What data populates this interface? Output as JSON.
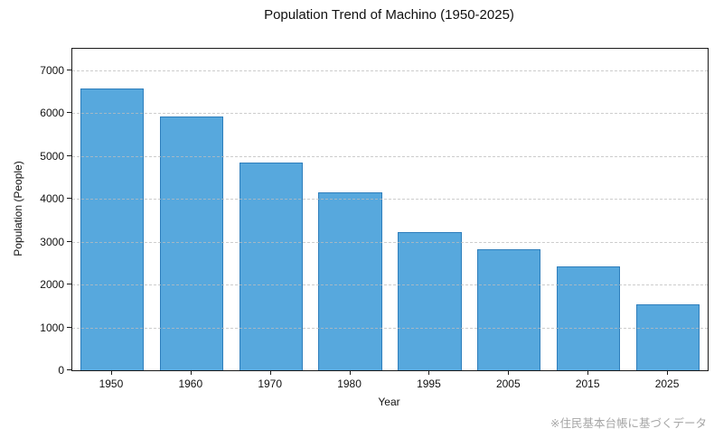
{
  "chart_data": {
    "type": "bar",
    "title": "Population Trend of Machino (1950-2025)",
    "xlabel": "Year",
    "ylabel": "Population (People)",
    "categories": [
      "1950",
      "1960",
      "1970",
      "1980",
      "1995",
      "2005",
      "2015",
      "2025"
    ],
    "values": [
      6570,
      5910,
      4850,
      4150,
      3220,
      2820,
      2420,
      1530
    ],
    "ylim": [
      0,
      7500
    ],
    "yticks": [
      0,
      1000,
      2000,
      3000,
      4000,
      5000,
      6000,
      7000
    ],
    "grid": "horizontal-dashed-above-bars",
    "legend": "none",
    "bar_fill_color": "#57a8dd",
    "bar_edge_color": "#2e7ebc",
    "gridline_color": "#bdbdbd",
    "annotation": "※住民基本台帳に基づくデータ",
    "annotation_color": "#a6a6a6"
  }
}
